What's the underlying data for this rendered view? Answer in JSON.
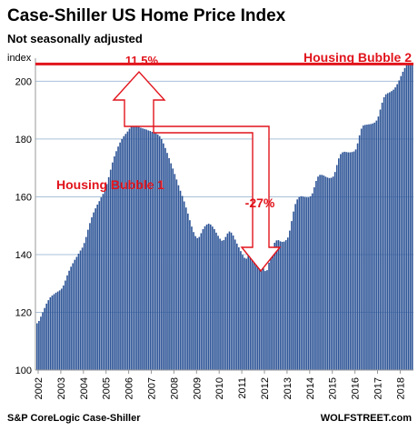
{
  "chart_data": {
    "type": "bar",
    "title": "Case-Shiller US Home Price Index",
    "subtitle": "Not seasonally adjusted",
    "ylabel": "index",
    "ylim": [
      100,
      208
    ],
    "yticks": [
      100,
      120,
      140,
      160,
      180,
      200
    ],
    "xticks": [
      "2002",
      "2003",
      "2004",
      "2005",
      "2006",
      "2007",
      "2008",
      "2009",
      "2010",
      "2011",
      "2012",
      "2013",
      "2014",
      "2015",
      "2016",
      "2017",
      "2018"
    ],
    "grid": true,
    "bar_color": "#2e5597",
    "series": [
      {
        "start": "2002-01",
        "frequency": "monthly",
        "values": [
          116.2,
          117.0,
          118.5,
          120.0,
          121.5,
          123.0,
          124.2,
          125.2,
          125.8,
          126.3,
          126.8,
          127.2,
          127.6,
          128.2,
          129.3,
          131.0,
          132.8,
          134.4,
          135.8,
          137.0,
          138.2,
          139.2,
          140.3,
          141.4,
          142.4,
          144.0,
          146.1,
          148.6,
          150.9,
          152.9,
          154.6,
          156.0,
          157.3,
          158.5,
          159.8,
          161.0,
          162.5,
          164.4,
          166.8,
          169.4,
          171.9,
          174.0,
          175.8,
          177.4,
          178.8,
          180.0,
          181.0,
          181.8,
          182.6,
          183.6,
          184.5,
          184.8,
          184.9,
          184.6,
          184.2,
          183.9,
          183.7,
          183.5,
          183.3,
          183.0,
          182.8,
          182.5,
          182.3,
          182.0,
          181.6,
          181.0,
          180.0,
          178.5,
          176.9,
          175.2,
          173.4,
          171.6,
          169.8,
          167.9,
          166.0,
          164.0,
          162.1,
          160.3,
          158.4,
          156.3,
          154.2,
          151.9,
          149.7,
          147.8,
          146.4,
          145.7,
          146.1,
          147.4,
          148.8,
          149.8,
          150.4,
          150.7,
          150.4,
          149.7,
          148.8,
          147.6,
          146.5,
          145.5,
          144.8,
          145.0,
          146.1,
          147.3,
          148.0,
          147.6,
          146.6,
          145.2,
          143.8,
          142.5,
          141.2,
          139.9,
          138.9,
          138.6,
          139.6,
          141.1,
          142.5,
          142.9,
          142.2,
          140.6,
          138.6,
          136.6,
          135.2,
          134.3,
          134.6,
          137.2,
          139.9,
          142.4,
          144.1,
          144.9,
          145.0,
          144.6,
          144.4,
          144.5,
          145.0,
          145.9,
          148.3,
          151.6,
          154.9,
          157.5,
          159.1,
          159.9,
          160.2,
          160.1,
          159.9,
          159.8,
          159.8,
          160.2,
          161.2,
          163.3,
          165.5,
          167.0,
          167.6,
          167.6,
          167.4,
          167.0,
          166.7,
          166.5,
          166.6,
          167.0,
          168.6,
          171.0,
          173.3,
          174.8,
          175.4,
          175.6,
          175.5,
          175.4,
          175.4,
          175.5,
          175.7,
          176.4,
          178.5,
          181.3,
          183.6,
          184.7,
          184.9,
          185.0,
          185.1,
          185.2,
          185.4,
          185.7,
          186.4,
          187.8,
          190.2,
          192.6,
          194.5,
          195.5,
          195.9,
          196.2,
          196.6,
          197.1,
          197.9,
          199.0,
          200.3,
          201.8,
          203.3,
          204.6,
          205.6,
          206.0,
          206.0,
          205.8
        ]
      }
    ],
    "annotations": {
      "bubble1_label": "Housing Bubble 1",
      "bubble2_label": "Housing Bubble 2",
      "rise_pct": "11.5%",
      "drop_pct": "-27%"
    },
    "reference_line": {
      "value": 206.0,
      "color": "#e1141c"
    },
    "annotation_color": "#e1141c"
  },
  "footer": {
    "source": "S&P CoreLogic Case-Shiller",
    "brand": "WOLFSTREET.com"
  }
}
